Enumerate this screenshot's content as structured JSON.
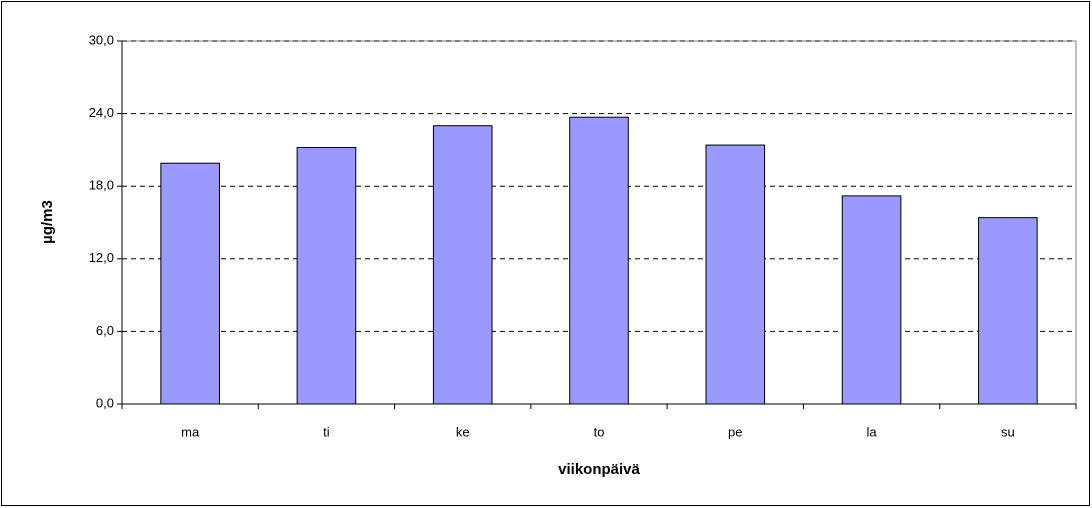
{
  "chart_data": {
    "type": "bar",
    "categories": [
      "ma",
      "ti",
      "ke",
      "to",
      "pe",
      "la",
      "su"
    ],
    "values": [
      19.9,
      21.2,
      23.0,
      23.7,
      21.4,
      17.2,
      15.4
    ],
    "color": "#9999ff",
    "xlabel": "viikonpäivä",
    "ylabel": "µg/m3",
    "ylim": [
      0,
      30
    ],
    "yticks": [
      {
        "value": 0,
        "label": "0,0"
      },
      {
        "value": 6,
        "label": "6,0"
      },
      {
        "value": 12,
        "label": "12,0"
      },
      {
        "value": 18,
        "label": "18,0"
      },
      {
        "value": 24,
        "label": "24,0"
      },
      {
        "value": 30,
        "label": "30,0"
      }
    ],
    "grid": true
  }
}
